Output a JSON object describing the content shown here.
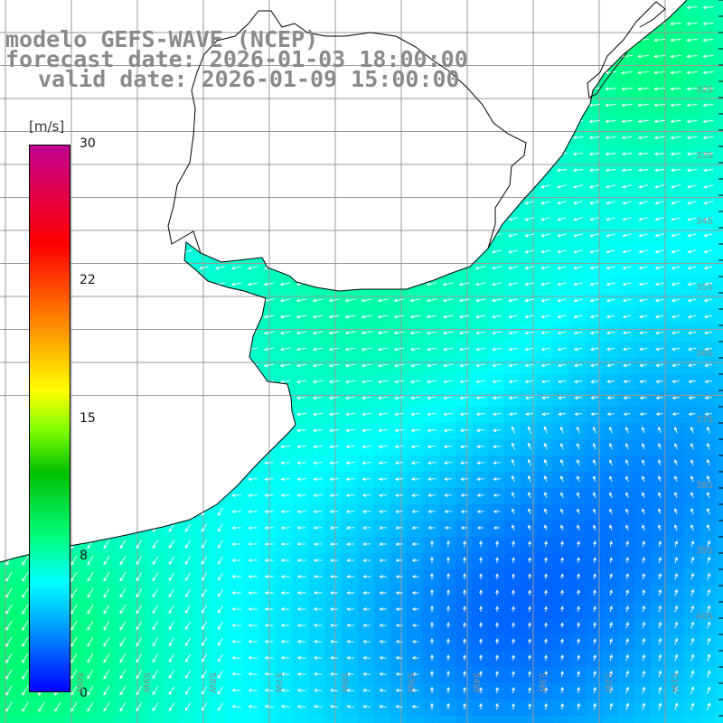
{
  "title": {
    "line1": "modelo GEFS-WAVE (NCEP)",
    "line2": "forecast date: 2026-01-03 18:00:00",
    "line3": "valid date: 2026-01-09 15:00:00"
  },
  "colorbar": {
    "unit": "[m/s]",
    "ticks": [
      "30",
      "22",
      "15",
      "8",
      "0"
    ],
    "tick_values": [
      30,
      22,
      15,
      8,
      0
    ],
    "range": [
      0,
      30
    ],
    "colors": [
      "#0000ff",
      "#00a0ff",
      "#00ffff",
      "#00ff80",
      "#00c000",
      "#80ff00",
      "#ffff00",
      "#ffa000",
      "#ff4000",
      "#ff0000",
      "#e00050",
      "#c00090"
    ]
  },
  "latitude_labels": [
    "32S",
    "33S",
    "34S",
    "35S",
    "36S",
    "37S",
    "38S",
    "39S",
    "40S"
  ],
  "longitude_labels": [
    "60W",
    "59W",
    "58W",
    "57W",
    "56W",
    "55W",
    "54W",
    "53W",
    "52W",
    "51W"
  ],
  "colors": {
    "land": "#ffffff",
    "coast": "#000000",
    "grid": "#9a9a9a",
    "arrow": "#ffffff",
    "title": "#8a8a8a"
  },
  "field": {
    "variable": "wind speed with direction arrows",
    "unit": "m/s",
    "typical_speed_range": [
      2,
      9
    ]
  }
}
